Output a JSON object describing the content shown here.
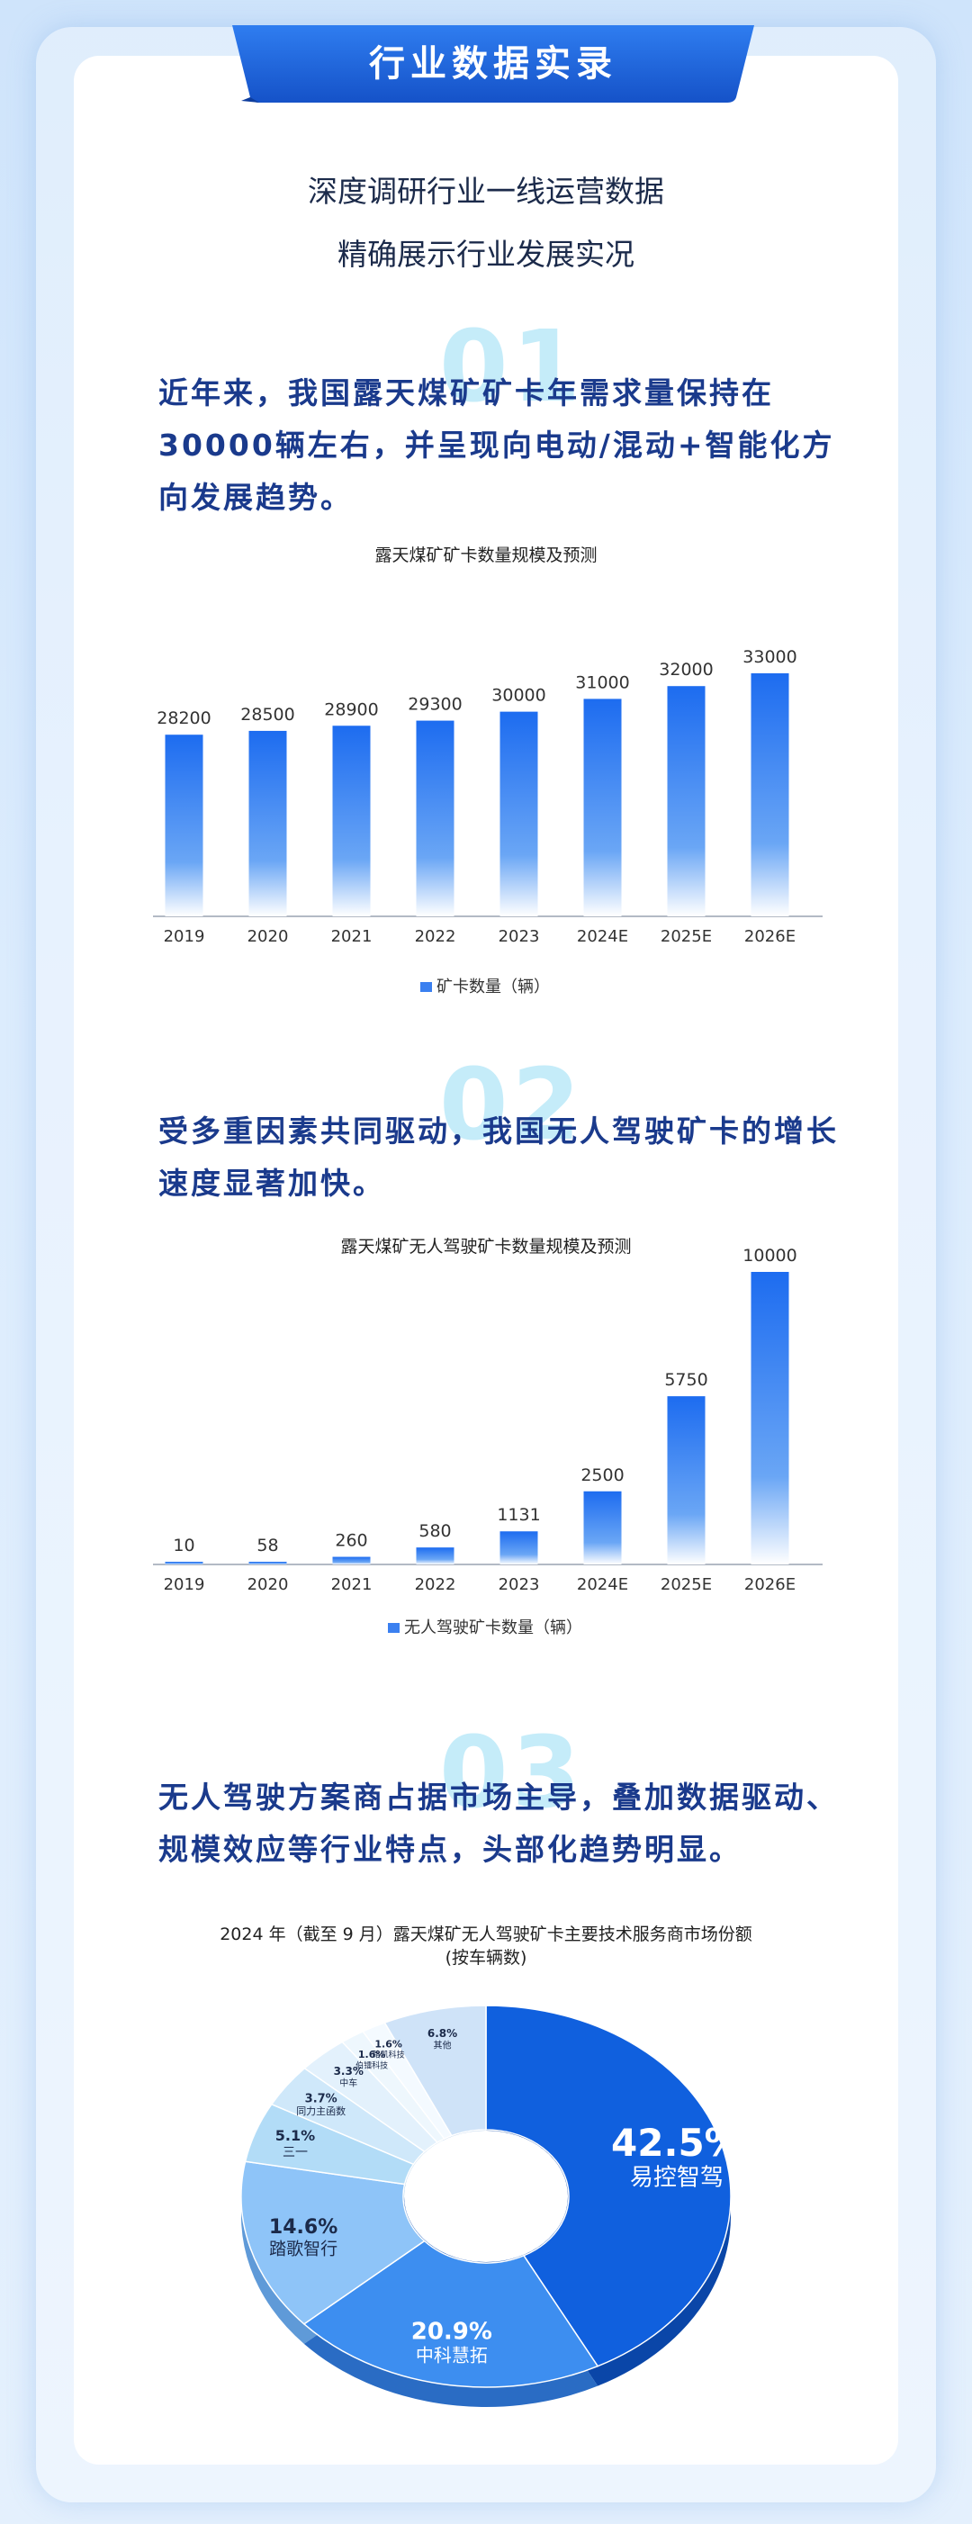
{
  "header": {
    "title": "行业数据实录"
  },
  "intro": {
    "line1": "深度调研行业一线运营数据",
    "line2": "精确展示行业发展实况"
  },
  "sections": [
    {
      "number": "01",
      "text": "近年来，我国露天煤矿矿卡年需求量保持在30000辆左右，并呈现向电动/混动+智能化方向发展趋势。"
    },
    {
      "number": "02",
      "text": "受多重因素共同驱动，我国无人驾驶矿卡的增长速度显著加快。"
    },
    {
      "number": "03",
      "text": "无人驾驶方案商占据市场主导，叠加数据驱动、规模效应等行业特点，头部化趋势明显。"
    }
  ],
  "colors": {
    "accent": "#1a62e6",
    "text_blue": "#1a3a8c",
    "pale_number": "#c5ecf9"
  },
  "chart_data": [
    {
      "type": "bar",
      "title": "露天煤矿矿卡数量规模及预测",
      "categories": [
        "2019",
        "2020",
        "2021",
        "2022",
        "2023",
        "2024E",
        "2025E",
        "2026E"
      ],
      "series": [
        {
          "name": "矿卡数量（辆）",
          "values": [
            28200,
            28500,
            28900,
            29300,
            30000,
            31000,
            32000,
            33000
          ]
        }
      ],
      "legend": "bottom-center",
      "grid": false
    },
    {
      "type": "bar",
      "title": "露天煤矿无人驾驶矿卡数量规模及预测",
      "categories": [
        "2019",
        "2020",
        "2021",
        "2022",
        "2023",
        "2024E",
        "2025E",
        "2026E"
      ],
      "series": [
        {
          "name": "无人驾驶矿卡数量（辆）",
          "values": [
            10,
            58,
            260,
            580,
            1131,
            2500,
            5750,
            10000
          ]
        }
      ],
      "legend": "bottom-center",
      "grid": false
    },
    {
      "type": "pie",
      "title_line1": "2024 年（截至 9 月）露天煤矿无人驾驶矿卡主要技术服务商市场份额",
      "title_line2": "(按车辆数)",
      "donut": true,
      "slices": [
        {
          "label": "易控智驾",
          "value": 42.5,
          "value_text": "42.5%",
          "color": "#1060de",
          "side": "#0a46a8"
        },
        {
          "label": "中科慧拓",
          "value": 20.9,
          "value_text": "20.9%",
          "color": "#3d8ef0",
          "side": "#2a6cc4"
        },
        {
          "label": "踏歌智行",
          "value": 14.6,
          "value_text": "14.6%",
          "color": "#8ec4f8",
          "side": "#5f9ad8"
        },
        {
          "label": "三一",
          "value": 5.1,
          "value_text": "5.1%",
          "color": "#b2dcf7",
          "side": "#7fb5dc"
        },
        {
          "label": "同力主函数",
          "value": 3.7,
          "value_text": "3.7%",
          "color": "#cfe8fa",
          "side": "#9cc5e4"
        },
        {
          "label": "中车",
          "value": 3.3,
          "value_text": "3.3%",
          "color": "#e3f1fc",
          "side": "#b0d2ea"
        },
        {
          "label": "伯镭科技",
          "value": 1.6,
          "value_text": "1.6%",
          "color": "#eef7fd",
          "side": "#c0dbef"
        },
        {
          "label": "路凯科技",
          "value": 1.6,
          "value_text": "1.6%",
          "color": "#f4faff",
          "side": "#c7dff1"
        },
        {
          "label": "其他",
          "value": 6.8,
          "value_text": "6.8%",
          "color": "#cfe3f8",
          "side": "#9ebfe2"
        }
      ]
    }
  ]
}
